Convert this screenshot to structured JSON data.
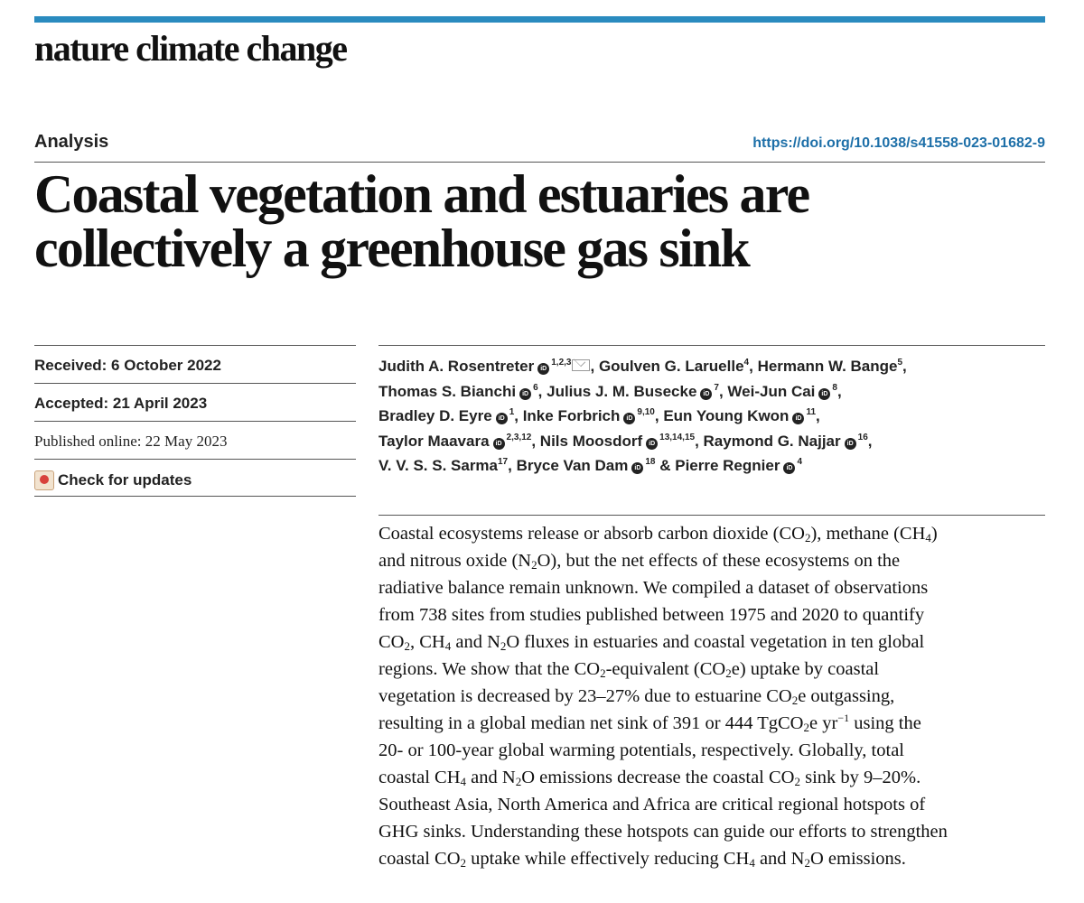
{
  "journal": "nature climate change",
  "section": "Analysis",
  "doi": "https://doi.org/10.1038/s41558-023-01682-9",
  "title_lines": [
    "Coastal vegetation and estuaries are",
    "collectively a greenhouse gas sink"
  ],
  "received": "Received: 6 October 2022",
  "accepted": "Accepted: 21 April 2023",
  "published": "Published online: 22 May 2023",
  "check_updates": "Check for updates",
  "authors": [
    {
      "name": "Judith A. Rosentreter",
      "orcid": true,
      "aff": "1,2,3",
      "mail": true,
      "sep": ", "
    },
    {
      "name": "Goulven G. Laruelle",
      "orcid": false,
      "aff": "4",
      "sep": ", "
    },
    {
      "name": "Hermann W. Bange",
      "orcid": false,
      "aff": "5",
      "sep": ","
    },
    {
      "name": "Thomas S. Bianchi",
      "orcid": true,
      "aff": "6",
      "sep": ", "
    },
    {
      "name": "Julius J. M. Busecke",
      "orcid": true,
      "aff": "7",
      "sep": ", "
    },
    {
      "name": "Wei-Jun Cai",
      "orcid": true,
      "aff": "8",
      "sep": ","
    },
    {
      "name": "Bradley D. Eyre",
      "orcid": true,
      "aff": "1",
      "sep": ", "
    },
    {
      "name": "Inke Forbrich",
      "orcid": true,
      "aff": "9,10",
      "sep": ", "
    },
    {
      "name": "Eun Young Kwon",
      "orcid": true,
      "aff": "11",
      "sep": ","
    },
    {
      "name": "Taylor Maavara",
      "orcid": true,
      "aff": "2,3,12",
      "sep": ", "
    },
    {
      "name": "Nils Moosdorf",
      "orcid": true,
      "aff": "13,14,15",
      "sep": ", "
    },
    {
      "name": "Raymond G. Najjar",
      "orcid": true,
      "aff": "16",
      "sep": ","
    },
    {
      "name": "V. V. S. S. Sarma",
      "orcid": false,
      "aff": "17",
      "sep": ", "
    },
    {
      "name": "Bryce Van Dam",
      "orcid": true,
      "aff": "18",
      "sep": " & "
    },
    {
      "name": "Pierre Regnier",
      "orcid": true,
      "aff": "4",
      "sep": ""
    }
  ],
  "author_lines": [
    [
      0,
      1,
      2
    ],
    [
      3,
      4,
      5
    ],
    [
      6,
      7,
      8
    ],
    [
      9,
      10,
      11
    ],
    [
      12,
      13,
      14
    ]
  ],
  "abstract_lines": [
    "Coastal ecosystems release or absorb carbon dioxide (CO_{2}), methane (CH_{4})",
    "and nitrous oxide (N_{2}O), but the net effects of these ecosystems on the",
    "radiative balance remain unknown. We compiled a dataset of observations",
    "from 738 sites from studies published between 1975 and 2020 to quantify",
    "CO_{2}, CH_{4} and N_{2}O fluxes in estuaries and coastal vegetation in ten global",
    "regions. We show that the CO_{2}-equivalent (CO_{2}e) uptake by coastal",
    "vegetation is decreased by 23–27% due to estuarine CO_{2}e outgassing,",
    "resulting in a global median net sink of 391 or 444 TgCO_{2}e yr^{−1} using the",
    "20- or 100-year global warming potentials, respectively. Globally, total",
    "coastal CH_{4} and N_{2}O emissions decrease the coastal CO_{2} sink by 9–20%.",
    "Southeast Asia, North America and Africa are critical regional hotspots of",
    "GHG sinks. Understanding these hotspots can guide our efforts to strengthen",
    "coastal CO_{2} uptake while effectively reducing CH_{4} and N_{2}O emissions."
  ],
  "colors": {
    "accent_bar": "#2a8bbf",
    "doi_link": "#1d6fa8"
  }
}
